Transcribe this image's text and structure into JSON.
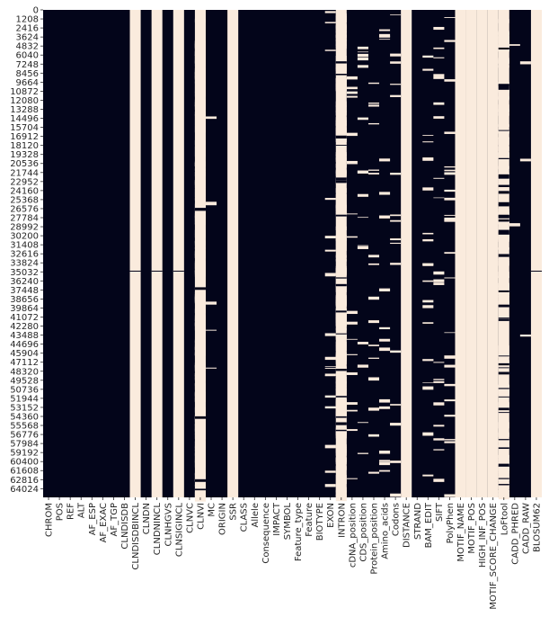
{
  "chart_data": {
    "type": "heatmap",
    "title": "",
    "xlabel": "",
    "ylabel": "",
    "colors": {
      "present": "#03051a",
      "missing": "#faebdd"
    },
    "row_ticks": [
      "0",
      "1208",
      "2416",
      "3624",
      "4832",
      "6040",
      "7248",
      "8456",
      "9664",
      "10872",
      "12080",
      "13288",
      "14496",
      "15704",
      "16912",
      "18120",
      "19328",
      "20536",
      "21744",
      "22952",
      "24160",
      "25368",
      "26576",
      "27784",
      "28992",
      "30200",
      "31408",
      "32616",
      "33824",
      "35032",
      "36240",
      "37448",
      "38656",
      "39864",
      "41072",
      "42280",
      "43488",
      "44696",
      "45904",
      "47112",
      "48320",
      "49528",
      "50736",
      "51944",
      "53152",
      "54360",
      "55568",
      "56776",
      "57984",
      "59192",
      "60400",
      "61608",
      "62816",
      "64024"
    ],
    "columns": [
      "CHROM",
      "POS",
      "REF",
      "ALT",
      "AF_ESP",
      "AF_EXAC",
      "AF_TGP",
      "CLNDISDB",
      "CLNDISDBINCL",
      "CLNDN",
      "CLNDNINCL",
      "CLNHGVS",
      "CLNSIGINCL",
      "CLNVC",
      "CLNVI",
      "MC",
      "ORIGIN",
      "SSR",
      "CLASS",
      "Allele",
      "Consequence",
      "IMPACT",
      "SYMBOL",
      "Feature_type",
      "Feature",
      "BIOTYPE",
      "EXON",
      "INTRON",
      "cDNA_position",
      "CDS_position",
      "Protein_position",
      "Amino_acids",
      "Codons",
      "DISTANCE",
      "STRAND",
      "BAM_EDIT",
      "SIFT",
      "PolyPhen",
      "MOTIF_NAME",
      "MOTIF_POS",
      "HIGH_INF_POS",
      "MOTIF_SCORE_CHANGE",
      "LoFtool",
      "CADD_PHRED",
      "CADD_RAW",
      "BLOSUM62"
    ],
    "visible_xtick_labels": [
      "CHROM",
      "POS",
      "REF",
      "ALT",
      "AF_ESP",
      "AF_EXAC",
      "AF_TGP",
      "CLNDISDB",
      "CLNDISDBINCL",
      "CLNDN",
      "CLNDNINCL",
      "CLNHGVS",
      "CLNSIGINCL",
      "CLNVC",
      "CLNVI",
      "MC",
      "ORIGIN",
      "SSR",
      "CLASS",
      "Allele",
      "Consequence",
      "IMPACT",
      "SYMBOL",
      "Feature_type",
      "Feature",
      "BIOTYPE",
      "EXON",
      "INTRON",
      "cDNA_position",
      "CDS_position",
      "Protein_position",
      "Amino_acids",
      "Codons",
      "DISTANCE",
      "STRAND",
      "BAM_EDIT",
      "SIFT",
      "PolyPhen",
      "MOTIF_NAME",
      "MOTIF_POS",
      "HIGH_INF_POS",
      "MOTIF_SCORE_CHANGE",
      "LoFtool",
      "CADD_PHRED",
      "CADD_RAW",
      "BLOSUM62"
    ],
    "n_rows": 65188,
    "missing_fraction": [
      0,
      0,
      0,
      0,
      0,
      0,
      0,
      0,
      0.99,
      0,
      0.99,
      0,
      0.99,
      0,
      0.95,
      0.04,
      0,
      1,
      0,
      0,
      0,
      0,
      0,
      0,
      0,
      0,
      0.13,
      0.87,
      0.12,
      0.12,
      0.12,
      0.12,
      0.12,
      1,
      0,
      0.15,
      0.15,
      0.18,
      1,
      1,
      1,
      1,
      0.7,
      0.01,
      0.02,
      0.99
    ],
    "grid": false,
    "legend": "none"
  }
}
